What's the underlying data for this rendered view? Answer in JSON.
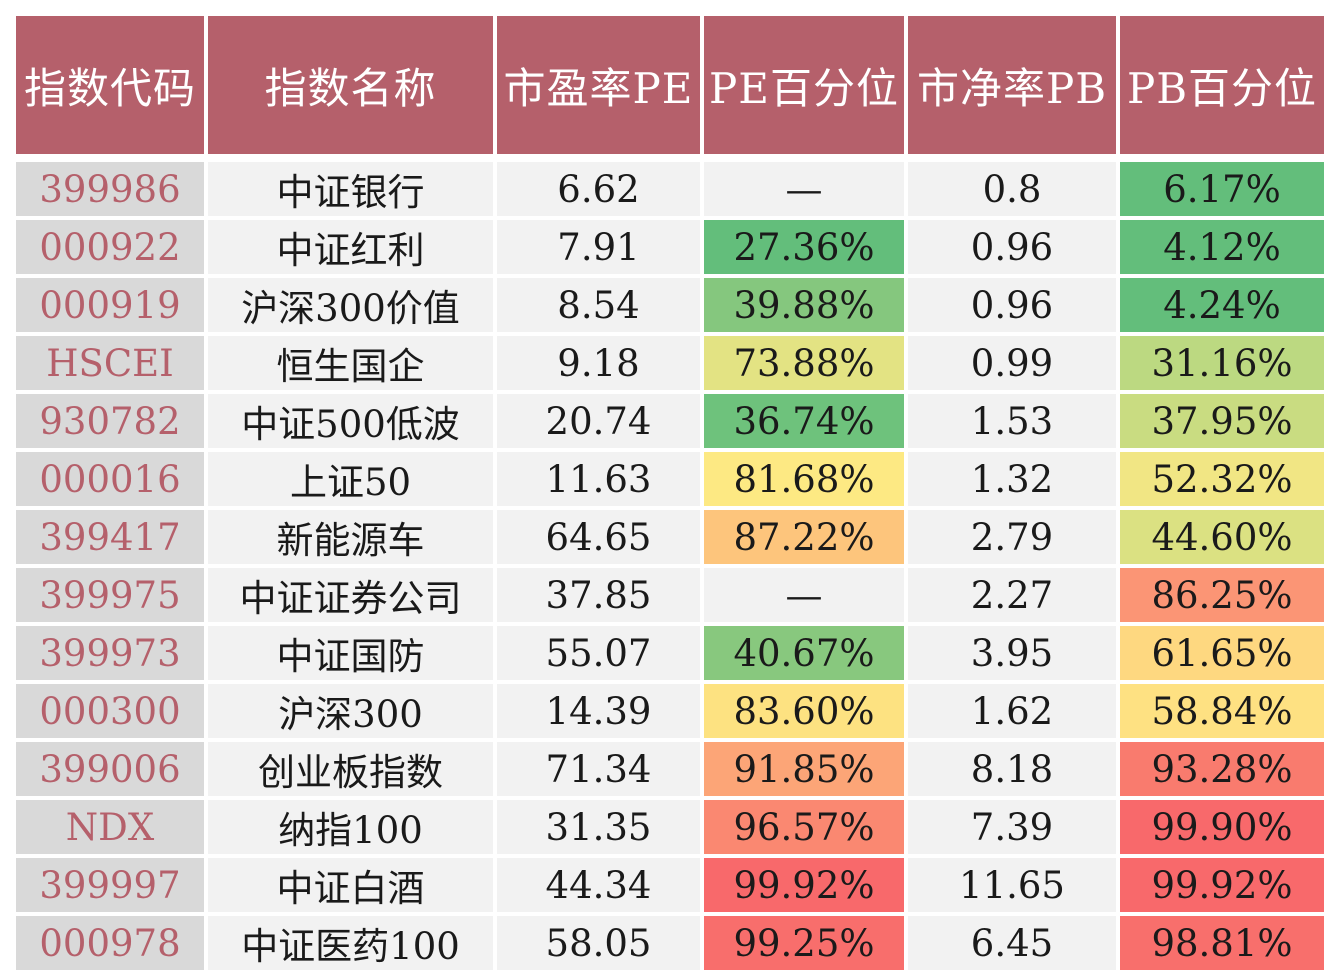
{
  "headers": [
    "指数代码",
    "指数名称",
    "市盈率PE",
    "PE百分位",
    "市净率PB",
    "PB百分位"
  ],
  "rows": [
    {
      "code": "399986",
      "name": "中证银行",
      "pe": "6.62",
      "pe_pct": "—",
      "pb": "0.8",
      "pb_pct": "6.17%",
      "pe_color": "#f2f2f2",
      "pb_color": "#63be7b"
    },
    {
      "code": "000922",
      "name": "中证红利",
      "pe": "7.91",
      "pe_pct": "27.36%",
      "pb": "0.96",
      "pb_pct": "4.12%",
      "pe_color": "#63be7b",
      "pb_color": "#63be7b"
    },
    {
      "code": "000919",
      "name": "沪深300价值",
      "pe": "8.54",
      "pe_pct": "39.88%",
      "pb": "0.96",
      "pb_pct": "4.24%",
      "pe_color": "#85c77e",
      "pb_color": "#63be7b"
    },
    {
      "code": "HSCEI",
      "name": "恒生国企",
      "pe": "9.18",
      "pe_pct": "73.88%",
      "pb": "0.99",
      "pb_pct": "31.16%",
      "pe_color": "#e3e383",
      "pb_color": "#bcd981"
    },
    {
      "code": "930782",
      "name": "中证500低波",
      "pe": "20.74",
      "pe_pct": "36.74%",
      "pb": "1.53",
      "pb_pct": "37.95%",
      "pe_color": "#6ec27c",
      "pb_color": "#c9dc81"
    },
    {
      "code": "000016",
      "name": "上证50",
      "pe": "11.63",
      "pe_pct": "81.68%",
      "pb": "1.32",
      "pb_pct": "52.32%",
      "pe_color": "#fde983",
      "pb_color": "#f1e684"
    },
    {
      "code": "399417",
      "name": "新能源车",
      "pe": "64.65",
      "pe_pct": "87.22%",
      "pb": "2.79",
      "pb_pct": "44.60%",
      "pe_color": "#fdc57c",
      "pb_color": "#dbe182"
    },
    {
      "code": "399975",
      "name": "中证证券公司",
      "pe": "37.85",
      "pe_pct": "—",
      "pb": "2.27",
      "pb_pct": "86.25%",
      "pe_color": "#f2f2f2",
      "pb_color": "#fb9575"
    },
    {
      "code": "399973",
      "name": "中证国防",
      "pe": "55.07",
      "pe_pct": "40.67%",
      "pb": "3.95",
      "pb_pct": "61.65%",
      "pe_color": "#88c87e",
      "pb_color": "#fed880"
    },
    {
      "code": "000300",
      "name": "沪深300",
      "pe": "14.39",
      "pe_pct": "83.60%",
      "pb": "1.62",
      "pb_pct": "58.84%",
      "pe_color": "#fde281",
      "pb_color": "#fee182"
    },
    {
      "code": "399006",
      "name": "创业板指数",
      "pe": "71.34",
      "pe_pct": "91.85%",
      "pb": "8.18",
      "pb_pct": "93.28%",
      "pe_color": "#fca577",
      "pb_color": "#f97b6e"
    },
    {
      "code": "NDX",
      "name": "纳指100",
      "pe": "31.35",
      "pe_pct": "96.57%",
      "pb": "7.39",
      "pb_pct": "99.90%",
      "pe_color": "#fa8871",
      "pb_color": "#f8696b"
    },
    {
      "code": "399997",
      "name": "中证白酒",
      "pe": "44.34",
      "pe_pct": "99.92%",
      "pb": "11.65",
      "pb_pct": "99.92%",
      "pe_color": "#f8696b",
      "pb_color": "#f8696b"
    },
    {
      "code": "000978",
      "name": "中证医药100",
      "pe": "58.05",
      "pe_pct": "99.25%",
      "pb": "6.45",
      "pb_pct": "98.81%",
      "pe_color": "#f86e6c",
      "pb_color": "#f86f6c"
    }
  ]
}
